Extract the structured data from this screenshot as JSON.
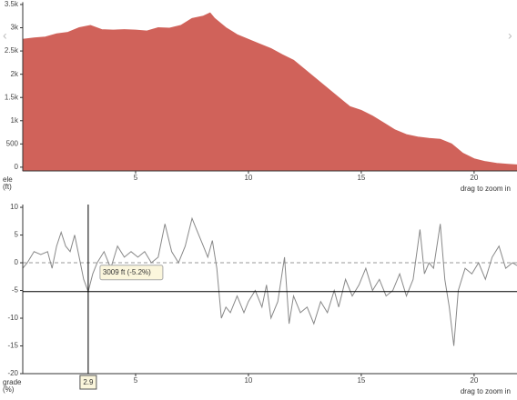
{
  "chart_data": [
    {
      "type": "area",
      "color": "#d0625a",
      "y_label": [
        "ele",
        "(ft)"
      ],
      "note": "drag to zoom in",
      "x": [
        0,
        0.5,
        1,
        1.5,
        2,
        2.5,
        3,
        3.5,
        4,
        4.5,
        5,
        5.5,
        6,
        6.5,
        7,
        7.5,
        8,
        8.3,
        8.5,
        9,
        9.5,
        10,
        10.5,
        11,
        11.5,
        12,
        12.5,
        13,
        13.5,
        14,
        14.5,
        15,
        15.5,
        16,
        16.5,
        17,
        17.5,
        18,
        18.5,
        19,
        19.5,
        20,
        20.5,
        21,
        21.5,
        21.9
      ],
      "values": [
        2750,
        2780,
        2800,
        2870,
        2900,
        3000,
        3050,
        2960,
        2950,
        2960,
        2950,
        2930,
        3000,
        2990,
        3050,
        3200,
        3250,
        3320,
        3200,
        3000,
        2850,
        2750,
        2650,
        2550,
        2420,
        2300,
        2100,
        1900,
        1700,
        1500,
        1300,
        1220,
        1100,
        950,
        800,
        700,
        650,
        620,
        600,
        500,
        300,
        180,
        120,
        80,
        60,
        50
      ],
      "xlim": [
        0,
        21.9
      ],
      "xticks": [
        5,
        10,
        15,
        20
      ],
      "ylim": [
        -80,
        3550
      ],
      "yticks": [
        0,
        500,
        {
          "value": 1000,
          "label": "1k"
        },
        {
          "value": 1500,
          "label": "1.5k"
        },
        {
          "value": 2000,
          "label": "2k"
        },
        {
          "value": 2500,
          "label": "2.5k"
        },
        {
          "value": 3000,
          "label": "3k"
        },
        {
          "value": 3500,
          "label": "3.5k"
        }
      ]
    },
    {
      "type": "line",
      "color": "#888888",
      "y_label": [
        "grade",
        "(%)"
      ],
      "note": "drag to zoom in",
      "x": [
        0,
        0.2,
        0.5,
        0.8,
        1.1,
        1.3,
        1.5,
        1.7,
        1.9,
        2.1,
        2.3,
        2.5,
        2.7,
        2.9,
        3.1,
        3.3,
        3.6,
        3.9,
        4.2,
        4.5,
        4.8,
        5.1,
        5.4,
        5.7,
        6,
        6.3,
        6.6,
        6.9,
        7.2,
        7.5,
        7.7,
        8,
        8.2,
        8.4,
        8.6,
        8.8,
        9,
        9.2,
        9.5,
        9.8,
        10,
        10.3,
        10.6,
        10.8,
        11,
        11.3,
        11.6,
        11.8,
        12,
        12.3,
        12.6,
        12.9,
        13.2,
        13.5,
        13.8,
        14,
        14.3,
        14.6,
        14.9,
        15.2,
        15.5,
        15.8,
        16.1,
        16.4,
        16.7,
        17,
        17.3,
        17.6,
        17.8,
        18,
        18.2,
        18.5,
        18.7,
        18.9,
        19.1,
        19.3,
        19.6,
        19.9,
        20.2,
        20.5,
        20.8,
        21.1,
        21.4,
        21.7,
        21.9
      ],
      "values": [
        -1,
        0,
        2,
        1.5,
        2,
        -1,
        3,
        5.5,
        3,
        2,
        5,
        1,
        -3,
        -5.2,
        -2,
        0,
        2,
        -1,
        3,
        1,
        2,
        1,
        2,
        0,
        1,
        7,
        2,
        0,
        3,
        8,
        6,
        3,
        1,
        4,
        -1,
        -10,
        -8,
        -9,
        -6,
        -9,
        -7,
        -5,
        -8,
        -4,
        -10,
        -7,
        1,
        -11,
        -6,
        -9,
        -8,
        -11,
        -7,
        -9,
        -5,
        -8,
        -3,
        -6,
        -4,
        -1,
        -5,
        -3,
        -6,
        -5,
        -2,
        -6,
        -3,
        6,
        -2,
        0,
        -1,
        7,
        -3,
        -8,
        -15,
        -5,
        -1,
        -2,
        0,
        -3,
        1,
        3,
        -1,
        0,
        -0.5
      ],
      "xlim": [
        0,
        21.9
      ],
      "xticks": [
        5,
        10,
        15,
        20
      ],
      "ylim": [
        -20,
        10.5
      ],
      "yticks": [
        10,
        5,
        0,
        -5,
        -10,
        -15,
        -20
      ],
      "reference_line": {
        "value": 0,
        "style": "dashed"
      },
      "crosshair": {
        "x": 2.9,
        "value": -5.2,
        "label": "3009 ft (-5.2%)"
      }
    }
  ]
}
